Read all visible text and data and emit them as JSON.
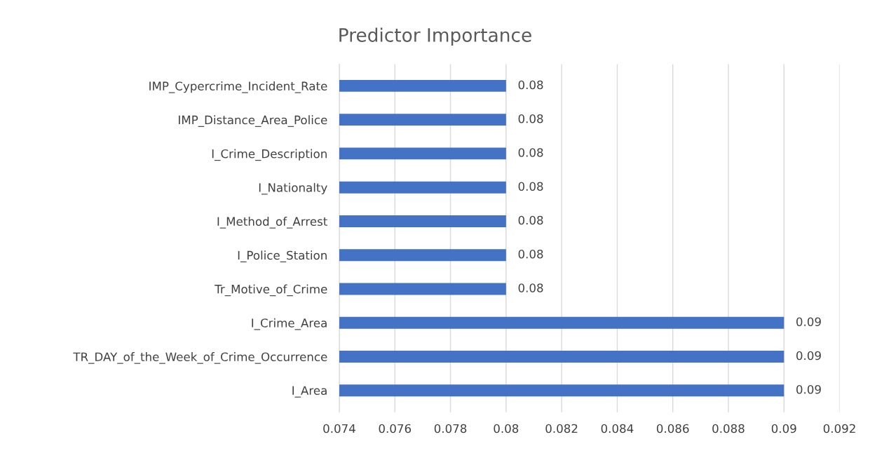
{
  "chart_data": {
    "type": "bar",
    "orientation": "horizontal",
    "title": "Predictor Importance",
    "categories": [
      "IMP_Cypercrime_Incident_Rate",
      "IMP_Distance_Area_Police",
      "I_Crime_Description",
      "I_Nationalty",
      "I_Method_of_Arrest",
      "I_Police_Station",
      "Tr_Motive_of_Crime",
      "I_Crime_Area",
      "TR_DAY_of_the_Week_of_Crime_Occurrence",
      "I_Area"
    ],
    "values": [
      0.08,
      0.08,
      0.08,
      0.08,
      0.08,
      0.08,
      0.08,
      0.09,
      0.09,
      0.09
    ],
    "color": "#4472c4",
    "xlim": [
      0.074,
      0.092
    ],
    "xticks": [
      0.074,
      0.076,
      0.078,
      0.08,
      0.082,
      0.084,
      0.086,
      0.088,
      0.09,
      0.092
    ],
    "grid": "x",
    "data_labels": true,
    "legend": false
  }
}
